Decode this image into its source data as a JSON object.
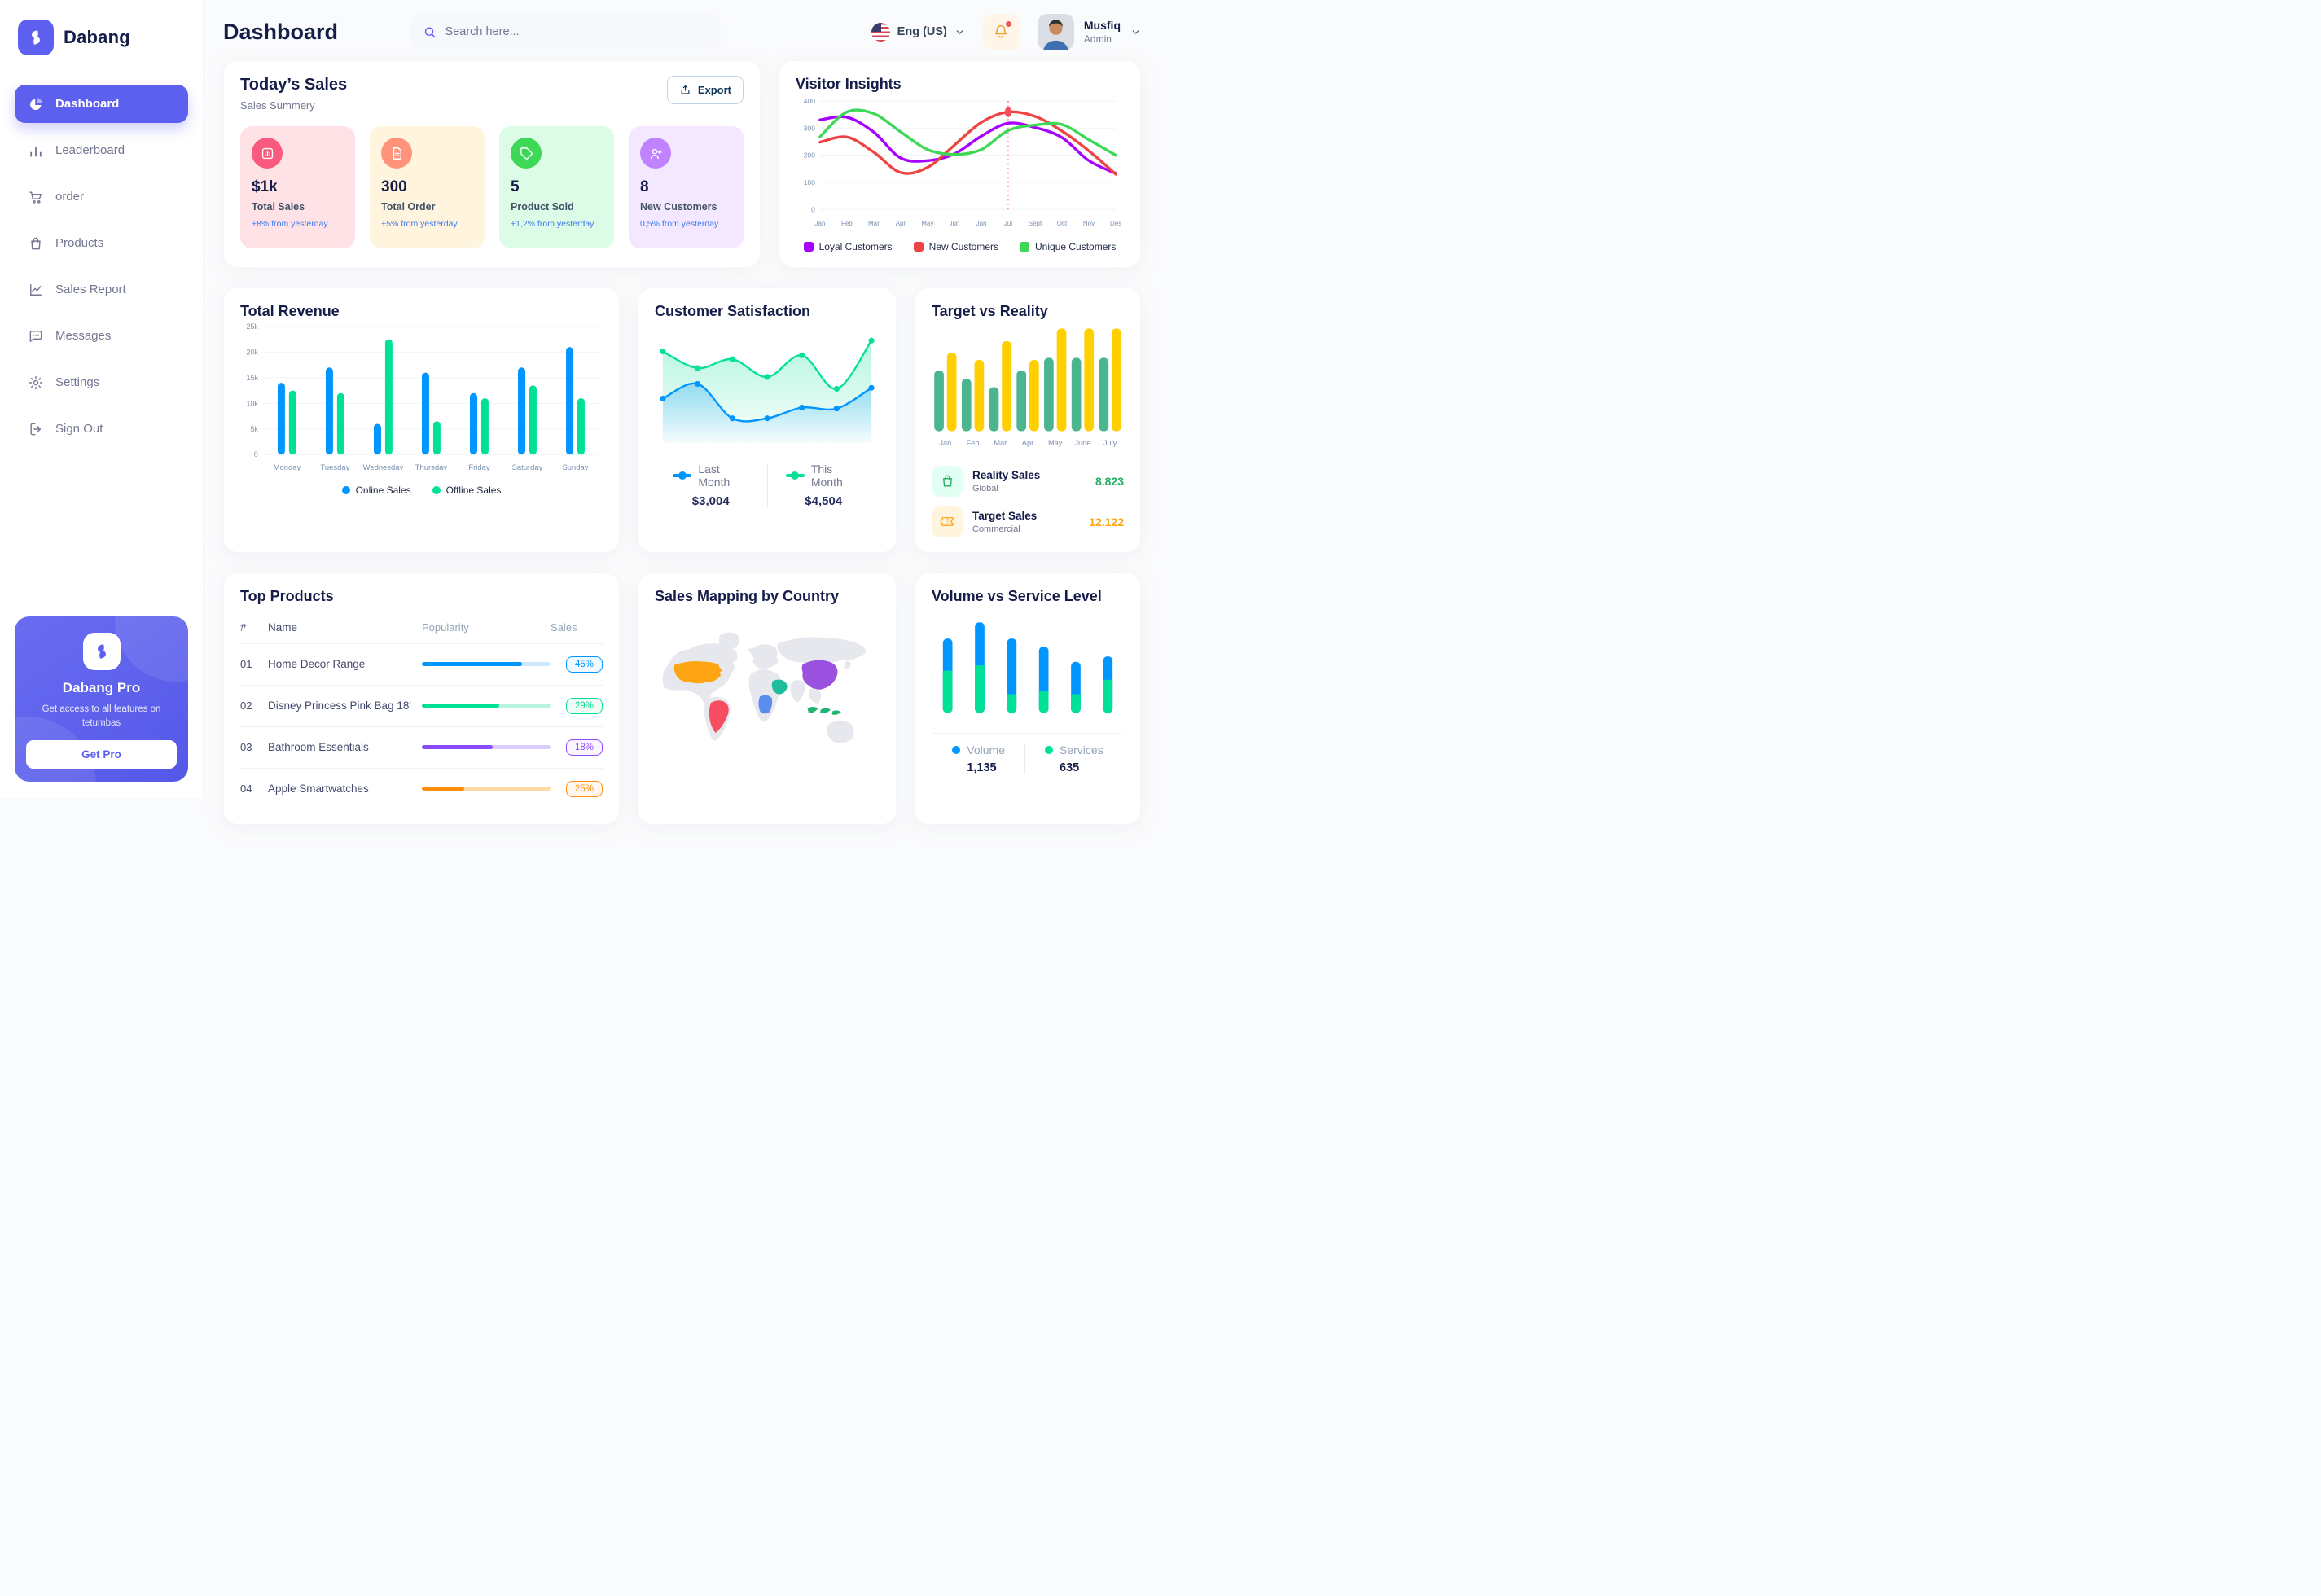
{
  "app": {
    "brand": "Dabang"
  },
  "colors": {
    "accent": "#5D5FEF",
    "title": "#151D48",
    "muted": "#737791",
    "delta_blue": "#4079ED"
  },
  "sidebar": {
    "items": [
      {
        "label": "Dashboard",
        "icon": "pie-chart-icon",
        "active": true
      },
      {
        "label": "Leaderboard",
        "icon": "bar-chart-icon",
        "active": false
      },
      {
        "label": "order",
        "icon": "cart-icon",
        "active": false
      },
      {
        "label": "Products",
        "icon": "bag-icon",
        "active": false
      },
      {
        "label": "Sales Report",
        "icon": "line-chart-icon",
        "active": false
      },
      {
        "label": "Messages",
        "icon": "chat-icon",
        "active": false
      },
      {
        "label": "Settings",
        "icon": "gear-icon",
        "active": false
      },
      {
        "label": "Sign Out",
        "icon": "sign-out-icon",
        "active": false
      }
    ],
    "pro": {
      "title": "Dabang Pro",
      "desc": "Get access to all features on tetumbas",
      "cta": "Get Pro"
    }
  },
  "header": {
    "title": "Dashboard",
    "search_placeholder": "Search here...",
    "language": "Eng (US)",
    "user": {
      "name": "Musfiq",
      "role": "Admin"
    }
  },
  "today_sales": {
    "title": "Today’s Sales",
    "subtitle": "Sales Summery",
    "export_label": "Export",
    "cards": [
      {
        "value": "$1k",
        "label": "Total Sales",
        "delta": "+8% from yesterday",
        "bg": "#FFE2E5",
        "icon_bg": "#FA5A7D",
        "icon": "stats-icon"
      },
      {
        "value": "300",
        "label": "Total Order",
        "delta": "+5% from yesterday",
        "bg": "#FFF4DE",
        "icon_bg": "#FF947A",
        "icon": "file-icon"
      },
      {
        "value": "5",
        "label": "Product Sold",
        "delta": "+1,2% from yesterday",
        "bg": "#DCFCE7",
        "icon_bg": "#3CD856",
        "icon": "tag-icon"
      },
      {
        "value": "8",
        "label": "New Customers",
        "delta": "0,5% from yesterday",
        "bg": "#F3E8FF",
        "icon_bg": "#BF83FF",
        "icon": "user-plus-icon"
      }
    ]
  },
  "chart_data": [
    {
      "id": "visitor_insights",
      "type": "line",
      "title": "Visitor Insights",
      "x": [
        "Jan",
        "Feb",
        "Mar",
        "Apr",
        "May",
        "Jun",
        "Jun",
        "Jul",
        "Sept",
        "Oct",
        "Nov",
        "Des"
      ],
      "ylim": [
        0,
        400
      ],
      "yticks": [
        0,
        100,
        200,
        300,
        400
      ],
      "grid": true,
      "legend_position": "bottom",
      "series": [
        {
          "name": "Loyal Customers",
          "color": "#A700FF",
          "values": [
            330,
            340,
            285,
            190,
            180,
            205,
            270,
            318,
            302,
            265,
            180,
            133
          ]
        },
        {
          "name": "New Customers",
          "color": "#EF4444",
          "values": [
            248,
            267,
            211,
            136,
            155,
            237,
            321,
            359,
            343,
            289,
            216,
            130
          ]
        },
        {
          "name": "Unique Customers",
          "color": "#3CD856",
          "values": [
            268,
            359,
            353,
            286,
            221,
            203,
            221,
            291,
            311,
            313,
            257,
            200
          ]
        }
      ],
      "annotation": {
        "x_index": 7,
        "series": "New Customers",
        "value": 359
      }
    },
    {
      "id": "total_revenue",
      "type": "bar",
      "title": "Total Revenue",
      "categories": [
        "Monday",
        "Tuesday",
        "Wednesday",
        "Thursday",
        "Friday",
        "Saturday",
        "Sunday"
      ],
      "ylim": [
        0,
        25000
      ],
      "ytick_labels": [
        "0",
        "5k",
        "10k",
        "15k",
        "20k",
        "25k"
      ],
      "grid": true,
      "series": [
        {
          "name": "Online Sales",
          "color": "#0095FF",
          "values": [
            14000,
            17000,
            6000,
            16000,
            12000,
            17000,
            21000
          ]
        },
        {
          "name": "Offline Sales",
          "color": "#00E096",
          "values": [
            12500,
            12000,
            22500,
            6500,
            11000,
            13500,
            11000
          ]
        }
      ]
    },
    {
      "id": "customer_satisfaction",
      "type": "area",
      "title": "Customer Satisfaction",
      "ylim": [
        0,
        110
      ],
      "series": [
        {
          "name": "This Month",
          "color": "#07E098",
          "total": "$4,504",
          "values": [
            88,
            71,
            80,
            62,
            84,
            50,
            99
          ]
        },
        {
          "name": "Last Month",
          "color": "#0095FF",
          "total": "$3,004",
          "values": [
            40,
            55,
            20,
            20,
            31,
            30,
            51
          ]
        }
      ],
      "legend_order": [
        "Last Month",
        "This Month"
      ]
    },
    {
      "id": "target_vs_reality",
      "type": "bar",
      "title": "Target vs Reality",
      "categories": [
        "Jan",
        "Feb",
        "Mar",
        "Apr",
        "May",
        "June",
        "July"
      ],
      "ylim": [
        0,
        100
      ],
      "series": [
        {
          "name": "Reality Sales",
          "color": "#4AB58E",
          "values": [
            58,
            50,
            42,
            58,
            70,
            70,
            70
          ]
        },
        {
          "name": "Target Sales",
          "color": "#FFCF00",
          "values": [
            75,
            68,
            86,
            68,
            98,
            98,
            98
          ]
        }
      ],
      "legend": [
        {
          "label": "Reality Sales",
          "sub": "Global",
          "value": "8.823",
          "value_color": "#27AE60",
          "icon": "bag-icon",
          "icon_bg": "#E2FFF3",
          "icon_color": "#27AE60"
        },
        {
          "label": "Target Sales",
          "sub": "Commercial",
          "value": "12.122",
          "value_color": "#FFA412",
          "icon": "ticket-icon",
          "icon_bg": "#FFF4DE",
          "icon_color": "#FFA412"
        }
      ]
    },
    {
      "id": "volume_service",
      "type": "stacked-bar",
      "title": "Volume vs Service Level",
      "ylim": [
        0,
        115
      ],
      "series": [
        {
          "name": "Volume",
          "color": "#0095FF",
          "total": "1,135",
          "values": [
            36,
            48,
            62,
            50,
            36,
            26
          ]
        },
        {
          "name": "Services",
          "color": "#00E096",
          "total": "635",
          "values": [
            47,
            53,
            21,
            24,
            21,
            37
          ]
        }
      ]
    }
  ],
  "top_products": {
    "title": "Top Products",
    "headers": [
      "#",
      "Name",
      "Popularity",
      "Sales"
    ],
    "rows": [
      {
        "num": "01",
        "name": "Home Decor Range",
        "popularity": 78,
        "bar_color": "#0095FF",
        "track_color": "#CDE7FF",
        "sales": "45%",
        "badge_bg": "#F0F9FF"
      },
      {
        "num": "02",
        "name": "Disney Princess Pink Bag 18'",
        "popularity": 60,
        "bar_color": "#00E096",
        "track_color": "#B9F5DE",
        "sales": "29%",
        "badge_bg": "#F0FDF4"
      },
      {
        "num": "03",
        "name": "Bathroom Essentials",
        "popularity": 55,
        "bar_color": "#884DFF",
        "track_color": "#DCCCFF",
        "sales": "18%",
        "badge_bg": "#FBF5FF"
      },
      {
        "num": "04",
        "name": "Apple Smartwatches",
        "popularity": 33,
        "bar_color": "#FF8F0D",
        "track_color": "#FFD9A6",
        "sales": "25%",
        "badge_bg": "#FFF7ED"
      }
    ]
  },
  "sales_mapping": {
    "title": "Sales Mapping by Country",
    "countries": [
      {
        "name": "United States",
        "color": "#FFA412"
      },
      {
        "name": "Brazil",
        "color": "#F64E60"
      },
      {
        "name": "Saudi Arabia",
        "color": "#1FBC9C"
      },
      {
        "name": "DR Congo",
        "color": "#5A8DEE"
      },
      {
        "name": "China",
        "color": "#9B51E0"
      },
      {
        "name": "Indonesia",
        "color": "#21B573"
      }
    ]
  }
}
